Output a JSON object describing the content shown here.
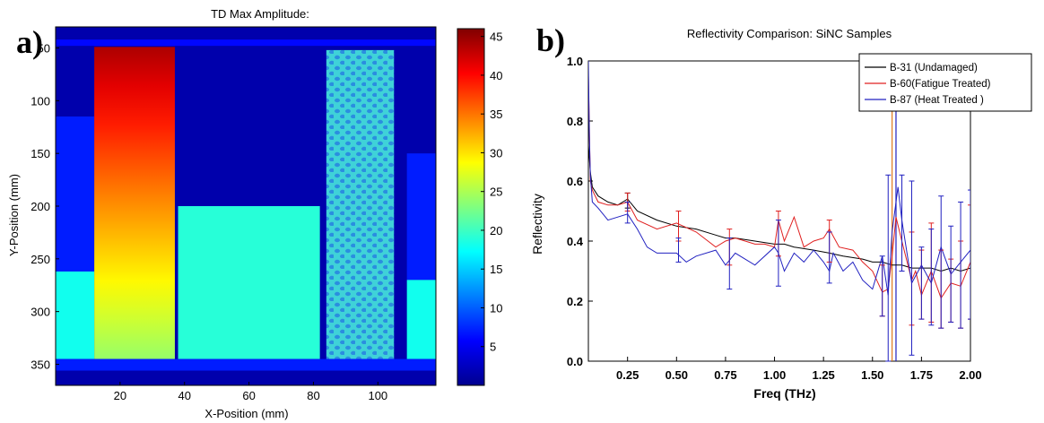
{
  "panels": {
    "a": "a)",
    "b": "b)"
  },
  "chart_data": [
    {
      "type": "heatmap",
      "title": "TD Max Amplitude:",
      "xlabel": "X-Position (mm)",
      "ylabel": "Y-Position (mm)",
      "xlim": [
        0,
        118
      ],
      "ylim": [
        370,
        30
      ],
      "x_ticks": [
        "20",
        "40",
        "60",
        "80",
        "100"
      ],
      "y_ticks": [
        "50",
        "100",
        "150",
        "200",
        "250",
        "300",
        "350"
      ],
      "colorbar_ticks": [
        "5",
        "10",
        "15",
        "20",
        "25",
        "30",
        "35",
        "40",
        "45"
      ],
      "colorbar_range": [
        0,
        46
      ],
      "regions": [
        {
          "name": "background",
          "x": [
            0,
            118
          ],
          "y": [
            30,
            370
          ],
          "value": 2
        },
        {
          "name": "top-band",
          "x": [
            0,
            118
          ],
          "y": [
            42,
            48
          ],
          "value": 6
        },
        {
          "name": "left-slab",
          "x": [
            0,
            12
          ],
          "y": [
            115,
            262
          ],
          "value": 7
        },
        {
          "name": "left-step",
          "x": [
            0,
            12
          ],
          "y": [
            262,
            345
          ],
          "value": 18
        },
        {
          "name": "gradient-sample",
          "x": [
            12,
            37
          ],
          "y": [
            49,
            345
          ],
          "value_top": 44,
          "value_bottom": 24
        },
        {
          "name": "green-block",
          "x": [
            38,
            82
          ],
          "y": [
            200,
            345
          ],
          "value": 19
        },
        {
          "name": "dotted-sample",
          "x": [
            84,
            105
          ],
          "y": [
            52,
            345
          ],
          "value": 13
        },
        {
          "name": "right-slab",
          "x": [
            109,
            118
          ],
          "y": [
            150,
            270
          ],
          "value": 7
        },
        {
          "name": "right-step",
          "x": [
            109,
            118
          ],
          "y": [
            270,
            345
          ],
          "value": 18
        },
        {
          "name": "bottom-band",
          "x": [
            0,
            118
          ],
          "y": [
            345,
            356
          ],
          "value": 7
        }
      ]
    },
    {
      "type": "line",
      "title": "Reflectivity Comparison: SiNC Samples",
      "xlabel": "Freq (THz)",
      "ylabel": "Reflectivity",
      "xlim": [
        0.05,
        2.0
      ],
      "ylim": [
        0.0,
        1.0
      ],
      "x_ticks": [
        "0.25",
        "0.50",
        "0.75",
        "1.00",
        "1.25",
        "1.50",
        "1.75",
        "2.00"
      ],
      "y_ticks": [
        "0.0",
        "0.2",
        "0.4",
        "0.6",
        "0.8",
        "1.0"
      ],
      "legend_position": "top-right",
      "series": [
        {
          "name": "B-31 (Undamaged)",
          "color": "#000000",
          "x": [
            0.05,
            0.06,
            0.07,
            0.1,
            0.15,
            0.2,
            0.25,
            0.3,
            0.4,
            0.5,
            0.6,
            0.7,
            0.75,
            0.8,
            0.9,
            1.0,
            1.05,
            1.1,
            1.2,
            1.28,
            1.35,
            1.45,
            1.5,
            1.55,
            1.6,
            1.65,
            1.7,
            1.75,
            1.8,
            1.85,
            1.9,
            1.95,
            2.0
          ],
          "y": [
            0.72,
            0.63,
            0.58,
            0.55,
            0.53,
            0.52,
            0.54,
            0.5,
            0.47,
            0.45,
            0.44,
            0.42,
            0.41,
            0.41,
            0.4,
            0.39,
            0.39,
            0.38,
            0.37,
            0.36,
            0.35,
            0.34,
            0.33,
            0.33,
            0.32,
            0.32,
            0.31,
            0.31,
            0.31,
            0.3,
            0.31,
            0.3,
            0.31
          ]
        },
        {
          "name": "B-60(Fatigue Treated)",
          "color": "#e02020",
          "x": [
            0.05,
            0.06,
            0.07,
            0.1,
            0.15,
            0.2,
            0.25,
            0.3,
            0.4,
            0.5,
            0.6,
            0.7,
            0.75,
            0.8,
            0.85,
            0.9,
            0.95,
            1.0,
            1.02,
            1.05,
            1.1,
            1.15,
            1.2,
            1.25,
            1.28,
            1.33,
            1.4,
            1.45,
            1.5,
            1.55,
            1.58,
            1.6,
            1.62,
            1.65,
            1.7,
            1.72,
            1.75,
            1.8,
            1.85,
            1.9,
            1.95,
            2.0
          ],
          "y": [
            0.95,
            0.6,
            0.57,
            0.53,
            0.52,
            0.52,
            0.53,
            0.47,
            0.44,
            0.46,
            0.43,
            0.38,
            0.4,
            0.41,
            0.4,
            0.39,
            0.39,
            0.38,
            0.47,
            0.4,
            0.48,
            0.38,
            0.4,
            0.41,
            0.44,
            0.38,
            0.37,
            0.33,
            0.3,
            0.23,
            0.24,
            0.35,
            0.48,
            0.4,
            0.27,
            0.3,
            0.22,
            0.3,
            0.21,
            0.26,
            0.25,
            0.33
          ]
        },
        {
          "name": "B-87 (Heat Treated )",
          "color": "#2020c0",
          "x": [
            0.05,
            0.055,
            0.06,
            0.07,
            0.1,
            0.15,
            0.2,
            0.25,
            0.3,
            0.35,
            0.4,
            0.5,
            0.55,
            0.6,
            0.7,
            0.75,
            0.8,
            0.9,
            1.0,
            1.02,
            1.05,
            1.1,
            1.15,
            1.2,
            1.25,
            1.28,
            1.3,
            1.35,
            1.4,
            1.45,
            1.5,
            1.55,
            1.58,
            1.6,
            1.63,
            1.65,
            1.7,
            1.75,
            1.8,
            1.85,
            1.9,
            1.95,
            2.0
          ],
          "y": [
            1.0,
            0.75,
            0.62,
            0.53,
            0.51,
            0.47,
            0.48,
            0.49,
            0.44,
            0.38,
            0.36,
            0.36,
            0.33,
            0.35,
            0.37,
            0.32,
            0.36,
            0.32,
            0.38,
            0.36,
            0.3,
            0.36,
            0.33,
            0.37,
            0.33,
            0.3,
            0.36,
            0.3,
            0.33,
            0.27,
            0.24,
            0.35,
            0.22,
            0.43,
            0.58,
            0.47,
            0.26,
            0.32,
            0.26,
            0.38,
            0.29,
            0.33,
            0.37
          ]
        }
      ],
      "error_bars": [
        {
          "series": 0,
          "x": 0.25,
          "lo": 0.51,
          "hi": 0.56
        },
        {
          "series": 1,
          "x": 0.25,
          "lo": 0.5,
          "hi": 0.56
        },
        {
          "series": 2,
          "x": 0.25,
          "lo": 0.46,
          "hi": 0.53
        },
        {
          "series": 1,
          "x": 0.51,
          "lo": 0.4,
          "hi": 0.5
        },
        {
          "series": 2,
          "x": 0.51,
          "lo": 0.33,
          "hi": 0.41
        },
        {
          "series": 1,
          "x": 0.77,
          "lo": 0.32,
          "hi": 0.44
        },
        {
          "series": 2,
          "x": 0.77,
          "lo": 0.24,
          "hi": 0.41
        },
        {
          "series": 1,
          "x": 1.02,
          "lo": 0.35,
          "hi": 0.5
        },
        {
          "series": 2,
          "x": 1.02,
          "lo": 0.25,
          "hi": 0.47
        },
        {
          "series": 1,
          "x": 1.28,
          "lo": 0.33,
          "hi": 0.47
        },
        {
          "series": 2,
          "x": 1.28,
          "lo": 0.26,
          "hi": 0.43
        },
        {
          "series": 1,
          "x": 1.55,
          "lo": 0.15,
          "hi": 0.32
        },
        {
          "series": 2,
          "x": 1.55,
          "lo": 0.15,
          "hi": 0.35
        },
        {
          "series": 2,
          "x": 1.58,
          "lo": 0.0,
          "hi": 0.62
        },
        {
          "series": 2,
          "x": 1.65,
          "lo": 0.3,
          "hi": 0.62
        },
        {
          "series": 1,
          "x": 1.7,
          "lo": 0.12,
          "hi": 0.43
        },
        {
          "series": 2,
          "x": 1.7,
          "lo": 0.02,
          "hi": 0.6
        },
        {
          "series": 1,
          "x": 1.75,
          "lo": 0.14,
          "hi": 0.37
        },
        {
          "series": 2,
          "x": 1.75,
          "lo": 0.14,
          "hi": 0.38
        },
        {
          "series": 1,
          "x": 1.8,
          "lo": 0.13,
          "hi": 0.46
        },
        {
          "series": 2,
          "x": 1.8,
          "lo": 0.12,
          "hi": 0.44
        },
        {
          "series": 1,
          "x": 1.85,
          "lo": 0.11,
          "hi": 0.37
        },
        {
          "series": 2,
          "x": 1.85,
          "lo": 0.11,
          "hi": 0.55
        },
        {
          "series": 1,
          "x": 1.9,
          "lo": 0.13,
          "hi": 0.34
        },
        {
          "series": 2,
          "x": 1.9,
          "lo": 0.13,
          "hi": 0.45
        },
        {
          "series": 1,
          "x": 1.95,
          "lo": 0.11,
          "hi": 0.4
        },
        {
          "series": 2,
          "x": 1.95,
          "lo": 0.11,
          "hi": 0.53
        },
        {
          "series": 1,
          "x": 2.0,
          "lo": 0.14,
          "hi": 0.52
        },
        {
          "series": 2,
          "x": 2.0,
          "lo": 0.14,
          "hi": 0.57
        }
      ],
      "vertical_lines": [
        {
          "x": 1.6,
          "color": "#e07a20"
        },
        {
          "x": 1.62,
          "color": "#2020c0"
        }
      ]
    }
  ]
}
